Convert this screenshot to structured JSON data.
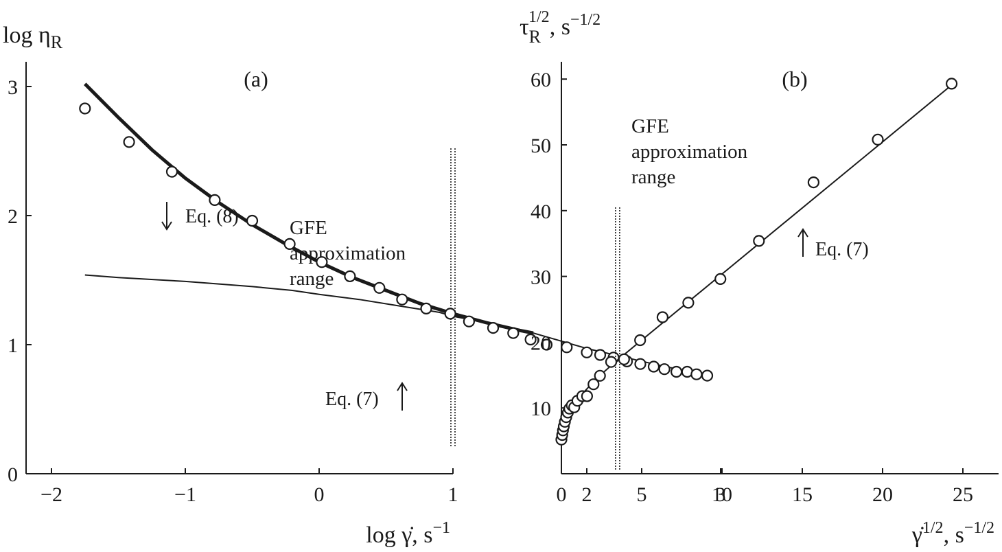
{
  "chart_data": [
    {
      "type": "scatter",
      "panel_label": "(a)",
      "ylabel_main": "log η",
      "ylabel_sub": "R",
      "xlabel_main": "log γ̇, s",
      "xlabel_sup": "−1",
      "xlim": [
        -2,
        3.3
      ],
      "ylim": [
        0,
        3.15
      ],
      "xticks": [
        -2,
        -1,
        0,
        1,
        2,
        3
      ],
      "xtick_labels": [
        "−2",
        "−1",
        "0",
        "1",
        "2",
        "3"
      ],
      "yticks": [
        0,
        1,
        2,
        3
      ],
      "ytick_labels": [
        "0",
        "1",
        "2",
        "3"
      ],
      "grid": false,
      "vline_x": 1,
      "range_note": [
        "GFE",
        "approximation",
        "range"
      ],
      "series": [
        {
          "kind": "points",
          "x": [
            -1.75,
            -1.42,
            -1.1,
            -0.78,
            -0.5,
            -0.22,
            0.02,
            0.23,
            0.45,
            0.62,
            0.8,
            0.98,
            1.12,
            1.3,
            1.45,
            1.58,
            1.7,
            1.85,
            2.0,
            2.1,
            2.2,
            2.3,
            2.4,
            2.5,
            2.58,
            2.67,
            2.75,
            2.82,
            2.9
          ],
          "y": [
            2.83,
            2.57,
            2.34,
            2.12,
            1.96,
            1.78,
            1.64,
            1.53,
            1.44,
            1.35,
            1.28,
            1.24,
            1.18,
            1.13,
            1.09,
            1.04,
            1.0,
            0.98,
            0.94,
            0.92,
            0.9,
            0.87,
            0.85,
            0.83,
            0.81,
            0.79,
            0.79,
            0.77,
            0.76
          ]
        },
        {
          "kind": "line",
          "weight": "thick",
          "x": [
            -1.75,
            -1.5,
            -1.25,
            -1.0,
            -0.75,
            -0.5,
            -0.25,
            0.0,
            0.25,
            0.5,
            0.75,
            1.0,
            1.25,
            1.5,
            1.6
          ],
          "y": [
            3.02,
            2.76,
            2.51,
            2.29,
            2.1,
            1.93,
            1.78,
            1.64,
            1.52,
            1.42,
            1.32,
            1.24,
            1.17,
            1.11,
            1.09
          ]
        },
        {
          "kind": "line",
          "weight": "thin",
          "x": [
            -1.75,
            -1.5,
            -1.0,
            -0.5,
            -0.2,
            0.0,
            0.3,
            0.6,
            0.9,
            1.0,
            1.3,
            1.6,
            2.0,
            2.5,
            2.9
          ],
          "y": [
            1.54,
            1.52,
            1.49,
            1.45,
            1.42,
            1.39,
            1.35,
            1.3,
            1.25,
            1.22,
            1.16,
            1.09,
            0.97,
            0.85,
            0.76
          ]
        }
      ],
      "annotations": [
        {
          "text": "Eq. (8)",
          "arrow": "down",
          "x": -0.22,
          "y": 1.92
        },
        {
          "text": "Eq. (7)",
          "arrow": "up",
          "x": 2.65,
          "y": 0.56
        }
      ]
    },
    {
      "type": "scatter",
      "panel_label": "(b)",
      "ylabel_main": "τ",
      "ylabel_sub": "R",
      "ylabel_sup": "1/2",
      "ylabel_tail": ", s",
      "ylabel_tail_sup": "−1/2",
      "xlabel_main": "γ̇",
      "xlabel_sup": "1/2",
      "xlabel_tail": ", s",
      "xlabel_tail_sup": "−1/2",
      "xlim": [
        0,
        27
      ],
      "ylim": [
        0,
        64
      ],
      "xticks": [
        0,
        5,
        10,
        15,
        20,
        25
      ],
      "xtick_labels": [
        "0",
        "5",
        "10",
        "15",
        "20",
        "25"
      ],
      "yticks": [
        10,
        20,
        30,
        40,
        50,
        60
      ],
      "ytick_labels": [
        "10",
        "20",
        "30",
        "40",
        "50",
        "60"
      ],
      "grid": false,
      "vline_x": 3.5,
      "range_note": [
        "GFE",
        "approximation",
        "range"
      ],
      "series": [
        {
          "kind": "points",
          "x": [
            0.0,
            0.05,
            0.1,
            0.15,
            0.22,
            0.3,
            0.4,
            0.5,
            0.65,
            0.8,
            1.0,
            1.3,
            1.6,
            2.0,
            2.4,
            3.1,
            3.9,
            4.9,
            6.3,
            7.9,
            9.9,
            12.3,
            15.7,
            19.7,
            24.3
          ],
          "y": [
            5.2,
            5.9,
            6.6,
            7.2,
            7.9,
            8.6,
            9.3,
            9.9,
            10.4,
            10.1,
            11.1,
            11.8,
            11.8,
            13.6,
            14.9,
            17.0,
            17.4,
            20.3,
            23.8,
            26.0,
            29.6,
            35.4,
            44.3,
            50.8,
            59.3
          ]
        },
        {
          "kind": "line",
          "weight": "thin",
          "x": [
            3.5,
            24.4
          ],
          "y": [
            17.3,
            59.3
          ]
        },
        {
          "kind": "line",
          "weight": "thin",
          "x": [
            0.0,
            0.1,
            0.25,
            0.5,
            0.9,
            1.4,
            2.0,
            2.7,
            3.5
          ],
          "y": [
            5.2,
            6.6,
            8.1,
            9.6,
            11.0,
            12.4,
            14.0,
            15.6,
            17.3
          ]
        }
      ],
      "annotations": [
        {
          "text": "Eq. (7)",
          "arrow": "up",
          "x": 14.8,
          "y": 36.0
        }
      ]
    }
  ]
}
